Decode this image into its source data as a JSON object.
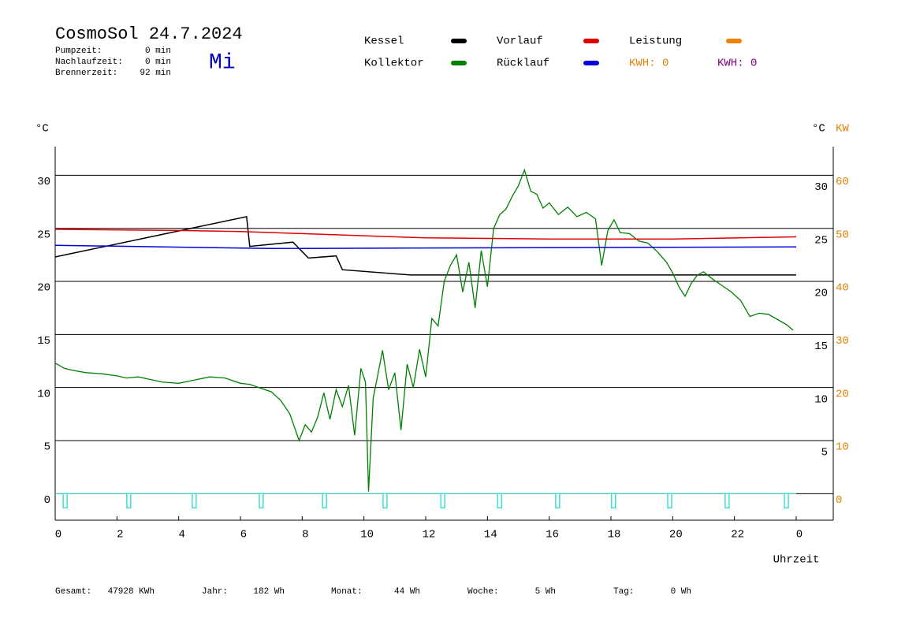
{
  "header": {
    "title": "CosmoSol 24.7.2024",
    "weekday": "Mi",
    "stats": [
      {
        "label": "Pumpzeit:",
        "value": "0 min"
      },
      {
        "label": "Nachlaufzeit:",
        "value": "0 min"
      },
      {
        "label": "Brennerzeit:",
        "value": "92 min"
      }
    ]
  },
  "footer": [
    {
      "label": "Gesamt:",
      "value": "47928 KWh"
    },
    {
      "label": "Jahr:",
      "value": "182 Wh"
    },
    {
      "label": "Monat:",
      "value": "44 Wh"
    },
    {
      "label": "Woche:",
      "value": "5 Wh"
    },
    {
      "label": "Tag:",
      "value": "0 Wh"
    }
  ],
  "kwh_labels": [
    {
      "text": "KWH: 0",
      "color": "#e08000"
    },
    {
      "text": "KWH: 0",
      "color": "#800080"
    }
  ],
  "chart_data": {
    "type": "line",
    "x_label": "Uhrzeit",
    "y_unit": "°C",
    "y2_unit_left": "°C",
    "y2_unit": "KW",
    "y2_color": "#e08000",
    "xlim": [
      0,
      24
    ],
    "xticks": [
      0,
      2,
      4,
      6,
      8,
      10,
      12,
      14,
      16,
      18,
      20,
      22,
      {
        "value": 24,
        "label": "0"
      }
    ],
    "ylim": [
      -2.5,
      32.7
    ],
    "yticks": [
      0,
      5,
      10,
      15,
      20,
      25,
      30
    ],
    "y2lim": [
      -5,
      65.4
    ],
    "y2ticks": [
      0,
      10,
      20,
      30,
      40,
      50,
      60
    ],
    "grid": true,
    "series": [
      {
        "name": "Kessel",
        "color": "#000000",
        "x": [
          0,
          6.2,
          6.3,
          7.7,
          8.2,
          9.1,
          9.3,
          11.5,
          24
        ],
        "values": [
          22.3,
          26.1,
          23.3,
          23.7,
          22.2,
          22.4,
          21.1,
          20.6,
          20.6
        ]
      },
      {
        "name": "Kollektor",
        "color": "#008000",
        "x": [
          0,
          0.3,
          0.6,
          1,
          1.5,
          2,
          2.3,
          2.7,
          3,
          3.5,
          4,
          4.5,
          5,
          5.5,
          6,
          6.3,
          6.6,
          7,
          7.3,
          7.6,
          7.9,
          8.1,
          8.3,
          8.5,
          8.7,
          8.9,
          9.1,
          9.3,
          9.5,
          9.7,
          9.9,
          10.05,
          10.15,
          10.3,
          10.45,
          10.6,
          10.8,
          11,
          11.2,
          11.4,
          11.6,
          11.8,
          12,
          12.2,
          12.4,
          12.6,
          12.8,
          13,
          13.2,
          13.4,
          13.6,
          13.8,
          14,
          14.2,
          14.4,
          14.6,
          14.8,
          15,
          15.2,
          15.4,
          15.6,
          15.8,
          16,
          16.3,
          16.6,
          16.9,
          17.2,
          17.5,
          17.7,
          17.9,
          18.1,
          18.3,
          18.6,
          18.9,
          19.2,
          19.5,
          19.8,
          20,
          20.2,
          20.4,
          20.6,
          20.8,
          21,
          21.3,
          21.6,
          21.9,
          22.2,
          22.5,
          22.8,
          23.1,
          23.4,
          23.7,
          23.9
        ],
        "values": [
          12.3,
          11.8,
          11.6,
          11.4,
          11.3,
          11.1,
          10.9,
          11.0,
          10.8,
          10.5,
          10.4,
          10.7,
          11.0,
          10.9,
          10.4,
          10.3,
          10.0,
          9.6,
          8.8,
          7.5,
          5.0,
          6.5,
          5.8,
          7.2,
          9.5,
          7.0,
          9.8,
          8.2,
          10.2,
          5.5,
          11.8,
          10.5,
          0.2,
          9.0,
          11.2,
          13.5,
          9.8,
          11.4,
          6.0,
          12.2,
          10.0,
          13.6,
          11.0,
          16.5,
          15.8,
          20.0,
          21.5,
          22.5,
          19.0,
          21.8,
          17.5,
          22.9,
          19.5,
          25.0,
          26.3,
          26.8,
          28.0,
          29.0,
          30.5,
          28.5,
          28.2,
          26.9,
          27.4,
          26.3,
          27.0,
          26.1,
          26.5,
          25.9,
          21.5,
          24.8,
          25.8,
          24.6,
          24.5,
          23.8,
          23.6,
          22.8,
          21.8,
          20.8,
          19.5,
          18.6,
          19.8,
          20.6,
          20.9,
          20.2,
          19.6,
          19.0,
          18.2,
          16.7,
          17.0,
          16.9,
          16.4,
          15.9,
          15.4
        ]
      },
      {
        "name": "Vorlauf",
        "color": "#e00000",
        "x": [
          0,
          4,
          6,
          8,
          10,
          12,
          16,
          20,
          24
        ],
        "values": [
          24.9,
          24.8,
          24.7,
          24.5,
          24.3,
          24.1,
          24.0,
          24.0,
          24.2
        ]
      },
      {
        "name": "Rücklauf",
        "color": "#0000e0",
        "x": [
          0,
          7,
          24
        ],
        "values": [
          23.4,
          23.1,
          23.25
        ]
      },
      {
        "name": "Leistung",
        "color": "#f08000",
        "axis": "y2",
        "x": [],
        "values": []
      }
    ],
    "pump_markers": {
      "color": "#40e0d0",
      "x": [
        0.31,
        2.37,
        4.49,
        6.66,
        8.71,
        10.67,
        12.54,
        14.38,
        16.26,
        18.07,
        19.89,
        21.75,
        23.67
      ]
    }
  }
}
